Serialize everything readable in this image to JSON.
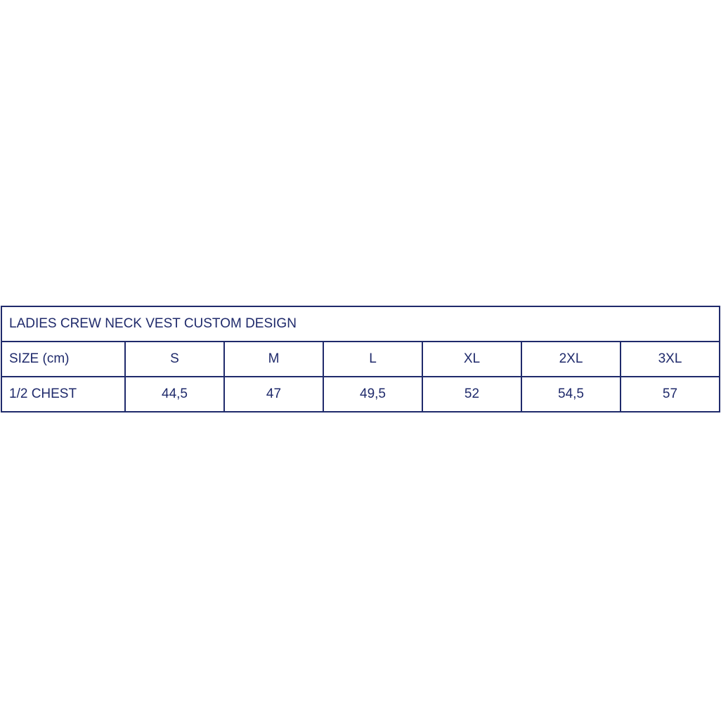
{
  "table": {
    "title": "LADIES CREW NECK VEST CUSTOM DESIGN",
    "header": [
      "SIZE (cm)",
      "S",
      "M",
      "L",
      "XL",
      "2XL",
      "3XL"
    ],
    "rows": [
      [
        "1/2 CHEST",
        "44,5",
        "47",
        "49,5",
        "52",
        "54,5",
        "57"
      ]
    ]
  },
  "colors": {
    "border": "#1f2a6b",
    "text": "#1f2a6b"
  }
}
